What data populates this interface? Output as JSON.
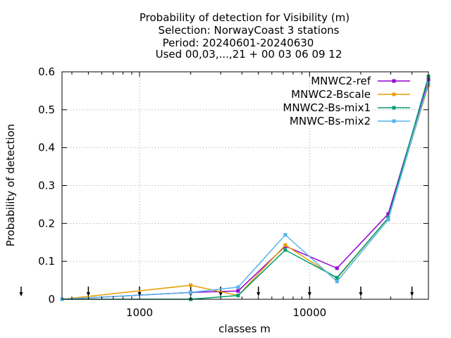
{
  "chart_data": {
    "type": "line",
    "title_lines": [
      "Probability of detection  for Visibility (m)",
      "Selection: NorwayCoast      3 stations",
      "Period: 20240601-20240630",
      "Used 00,03,...,21 + 00 03 06 09 12"
    ],
    "xlabel": "classes m",
    "ylabel": "Probability of detection",
    "x_scale": "log",
    "xlim": [
      350,
      50000
    ],
    "ylim": [
      0,
      0.6
    ],
    "x_ticks": [
      1000,
      10000
    ],
    "x_tick_labels": [
      "1000",
      "10000"
    ],
    "y_ticks": [
      0,
      0.1,
      0.2,
      0.3,
      0.4,
      0.5,
      0.6
    ],
    "y_tick_labels": [
      "0",
      "0.1",
      "0.2",
      "0.3",
      "0.4",
      "0.5",
      "0.6"
    ],
    "grid": true,
    "legend_position": "top-right",
    "class_markers_x": [
      350,
      500,
      1000,
      2000,
      3000,
      5000,
      10000,
      20000,
      40000
    ],
    "x": [
      350,
      2000,
      3800,
      7200,
      14500,
      29000,
      50000
    ],
    "series": [
      {
        "name": "MNWC2-ref",
        "color": "#9400d3",
        "values": [
          0.0,
          0.018,
          0.022,
          0.14,
          0.082,
          0.225,
          0.58
        ]
      },
      {
        "name": "MNWC2-Bscale",
        "color": "#e69f00",
        "values": [
          0.0,
          0.037,
          0.01,
          0.143,
          0.055,
          0.215,
          0.565
        ]
      },
      {
        "name": "MNWC2-Bs-mix1",
        "color": "#009e73",
        "values": [
          0.0,
          0.0,
          0.01,
          0.13,
          0.057,
          0.215,
          0.588
        ]
      },
      {
        "name": "MNWC-Bs-mix2",
        "color": "#56b4e9",
        "values": [
          0.0,
          0.018,
          0.032,
          0.17,
          0.047,
          0.21,
          0.57
        ]
      }
    ]
  }
}
